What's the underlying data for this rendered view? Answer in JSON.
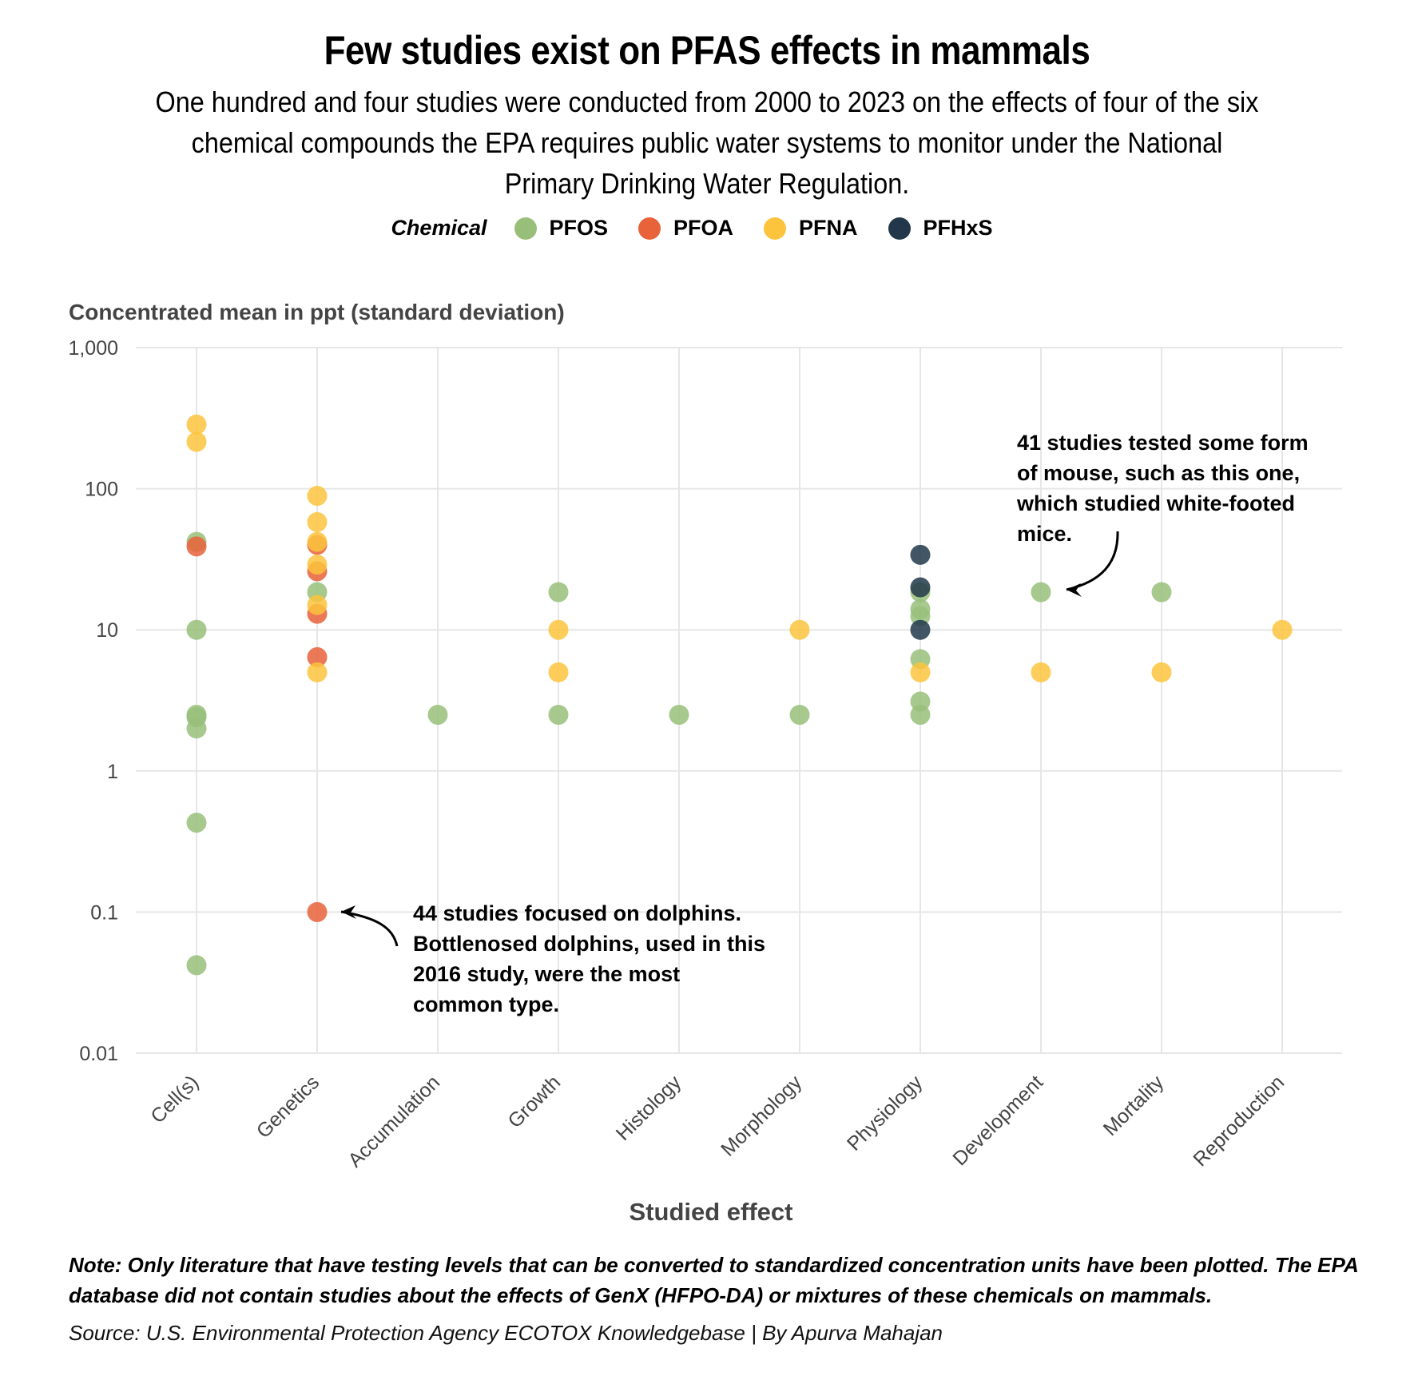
{
  "title": "Few studies exist on PFAS effects in mammals",
  "subtitle": "One hundred and four studies were conducted from 2000 to 2023 on the effects of four of the six chemical compounds the EPA requires public water systems to monitor under the National Primary Drinking Water Regulation.",
  "legend": {
    "title": "Chemical",
    "items": [
      {
        "label": "PFOS",
        "color": "#98bf7a"
      },
      {
        "label": "PFOA",
        "color": "#e8623a"
      },
      {
        "label": "PFNA",
        "color": "#fcc43d"
      },
      {
        "label": "PFHxS",
        "color": "#22384a"
      }
    ]
  },
  "note": "Note: Only literature that have testing levels that can be converted to standardized concentration units have been plotted. The EPA database did not contain studies about the effects of GenX (HFPO-DA) or mixtures of these chemicals on mammals.",
  "source": "Source: U.S. Environmental Protection Agency ECOTOX Knowledgebase | By Apurva Mahajan",
  "chart_data": {
    "type": "scatter",
    "ylabel": "Concentrated mean in ppt (standard deviation)",
    "xlabel": "Studied effect",
    "yscale": "log",
    "ylim": [
      0.01,
      1000
    ],
    "yticks": [
      {
        "value": 0.01,
        "label": "0.01"
      },
      {
        "value": 0.1,
        "label": "0.1"
      },
      {
        "value": 1,
        "label": "1"
      },
      {
        "value": 10,
        "label": "10"
      },
      {
        "value": 100,
        "label": "100"
      },
      {
        "value": 1000,
        "label": "1,000"
      }
    ],
    "categories": [
      "Cell(s)",
      "Genetics",
      "Accumulation",
      "Growth",
      "Histology",
      "Morphology",
      "Physiology",
      "Development",
      "Mortality",
      "Reproduction"
    ],
    "series": [
      {
        "name": "PFOS",
        "color": "#98bf7a",
        "points": [
          {
            "category": "Cell(s)",
            "value": 42
          },
          {
            "category": "Cell(s)",
            "value": 10
          },
          {
            "category": "Cell(s)",
            "value": 2.5
          },
          {
            "category": "Cell(s)",
            "value": 2.4
          },
          {
            "category": "Cell(s)",
            "value": 2
          },
          {
            "category": "Cell(s)",
            "value": 0.43
          },
          {
            "category": "Cell(s)",
            "value": 0.042
          },
          {
            "category": "Genetics",
            "value": 18.5
          },
          {
            "category": "Accumulation",
            "value": 2.5
          },
          {
            "category": "Growth",
            "value": 18.5
          },
          {
            "category": "Growth",
            "value": 2.5
          },
          {
            "category": "Histology",
            "value": 2.5
          },
          {
            "category": "Morphology",
            "value": 2.5
          },
          {
            "category": "Physiology",
            "value": 18.5
          },
          {
            "category": "Physiology",
            "value": 14
          },
          {
            "category": "Physiology",
            "value": 12.5
          },
          {
            "category": "Physiology",
            "value": 6.2
          },
          {
            "category": "Physiology",
            "value": 3.1
          },
          {
            "category": "Physiology",
            "value": 2.5
          },
          {
            "category": "Development",
            "value": 18.5
          },
          {
            "category": "Mortality",
            "value": 18.5
          }
        ]
      },
      {
        "name": "PFOA",
        "color": "#e8623a",
        "points": [
          {
            "category": "Cell(s)",
            "value": 39
          },
          {
            "category": "Genetics",
            "value": 40
          },
          {
            "category": "Genetics",
            "value": 26
          },
          {
            "category": "Genetics",
            "value": 13
          },
          {
            "category": "Genetics",
            "value": 6.4
          },
          {
            "category": "Genetics",
            "value": 0.1
          }
        ]
      },
      {
        "name": "PFNA",
        "color": "#fcc43d",
        "points": [
          {
            "category": "Cell(s)",
            "value": 285
          },
          {
            "category": "Cell(s)",
            "value": 215
          },
          {
            "category": "Genetics",
            "value": 89
          },
          {
            "category": "Genetics",
            "value": 58
          },
          {
            "category": "Genetics",
            "value": 42
          },
          {
            "category": "Genetics",
            "value": 29
          },
          {
            "category": "Genetics",
            "value": 15
          },
          {
            "category": "Genetics",
            "value": 5
          },
          {
            "category": "Growth",
            "value": 10
          },
          {
            "category": "Growth",
            "value": 5
          },
          {
            "category": "Morphology",
            "value": 10
          },
          {
            "category": "Physiology",
            "value": 5
          },
          {
            "category": "Development",
            "value": 5
          },
          {
            "category": "Mortality",
            "value": 5
          },
          {
            "category": "Reproduction",
            "value": 10
          }
        ]
      },
      {
        "name": "PFHxS",
        "color": "#22384a",
        "points": [
          {
            "category": "Physiology",
            "value": 34
          },
          {
            "category": "Physiology",
            "value": 20
          },
          {
            "category": "Physiology",
            "value": 10
          }
        ]
      }
    ],
    "annotations": [
      {
        "id": "dolphins",
        "lines": [
          "44 studies focused on dolphins.",
          "Bottlenosed dolphins, used in this",
          "2016 study, were the most",
          "common type."
        ],
        "target": {
          "category": "Genetics",
          "value": 0.1
        }
      },
      {
        "id": "mice",
        "lines": [
          "41 studies tested some form",
          "of mouse, such as this one,",
          "which studied white-footed",
          "mice."
        ],
        "target": {
          "category": "Development",
          "value": 18.5
        }
      }
    ]
  }
}
